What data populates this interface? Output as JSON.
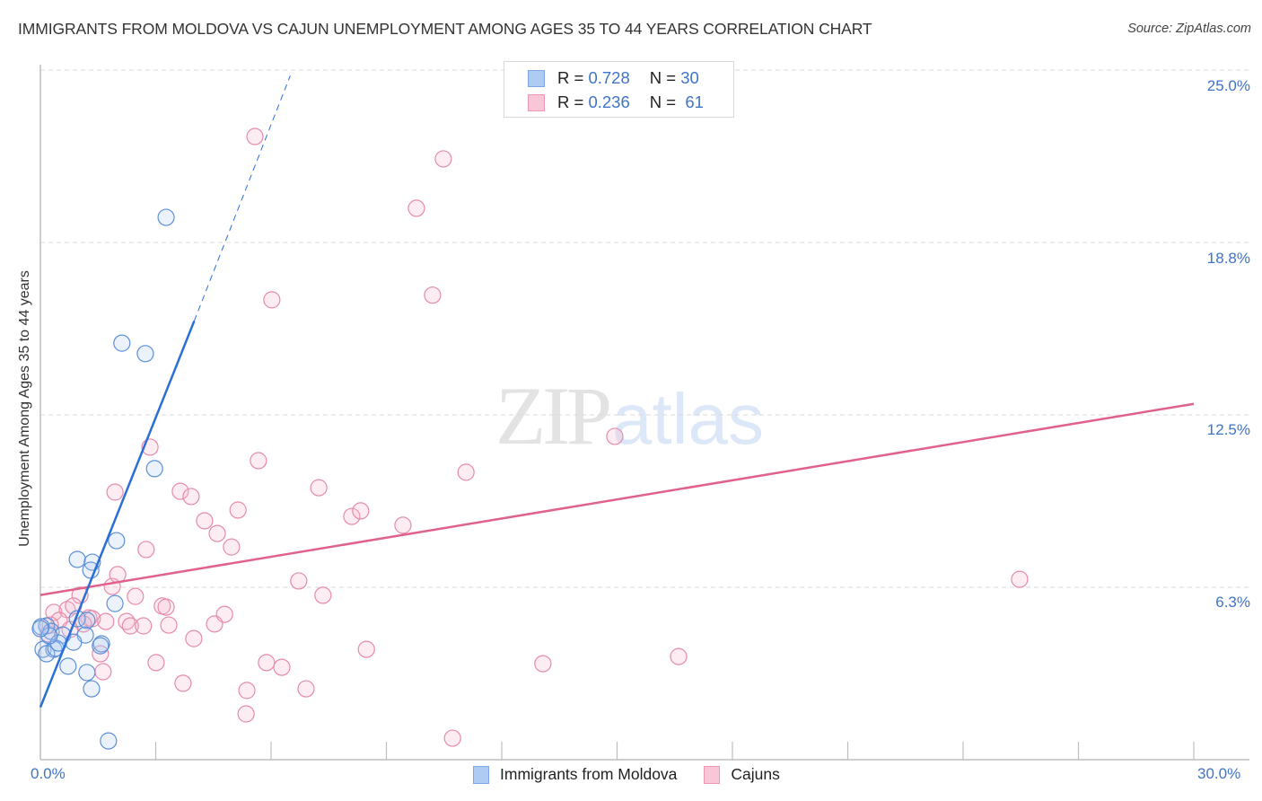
{
  "header": {
    "title": "IMMIGRANTS FROM MOLDOVA VS CAJUN UNEMPLOYMENT AMONG AGES 35 TO 44 YEARS CORRELATION CHART",
    "source": "Source: ZipAtlas.com"
  },
  "watermark": {
    "zip": "ZIP",
    "atlas": "atlas"
  },
  "legend": {
    "rows": [
      {
        "r_label": "R = ",
        "r_value": "0.728",
        "n_label": "N = ",
        "n_value": "30",
        "color": "#aecbf3"
      },
      {
        "r_label": "R = ",
        "r_value": "0.236",
        "n_label": "N = ",
        "n_value": " 61",
        "color": "#f9c6d7"
      }
    ]
  },
  "axes": {
    "ylabel": "Unemployment Among Ages 35 to 44 years",
    "yticks": [
      "25.0%",
      "18.8%",
      "12.5%",
      "6.3%"
    ],
    "xticks": [
      "0.0%",
      "30.0%"
    ]
  },
  "bottom_legend": [
    {
      "label": "Immigrants from Moldova",
      "color": "#aecbf3",
      "border": "#7fa8e2"
    },
    {
      "label": "Cajuns",
      "color": "#f9c6d7",
      "border": "#ec97b4"
    }
  ],
  "colors": {
    "blue_fill": "#aecbf340",
    "blue_stroke": "#5b8fd8",
    "blue_line": "#2a6fd6",
    "pink_fill": "#f7b6cb40",
    "pink_stroke": "#e68aa9",
    "pink_line": "#e0628c",
    "grid": "#d9d9d9",
    "axis": "#bdbdbd",
    "tick_label": "#3f74c9"
  },
  "chart_data": {
    "type": "scatter",
    "title": "IMMIGRANTS FROM MOLDOVA VS CAJUN UNEMPLOYMENT AMONG AGES 35 TO 44 YEARS CORRELATION CHART",
    "xlabel": "",
    "ylabel": "Unemployment Among Ages 35 to 44 years",
    "xlim": [
      0,
      30
    ],
    "ylim": [
      0,
      26.5
    ],
    "x_tick_labels": [
      "0.0%",
      "30.0%"
    ],
    "y_tick_labels": [
      "6.3%",
      "12.5%",
      "18.8%",
      "25.0%"
    ],
    "y_tick_values": [
      6.25,
      12.5,
      18.75,
      25.0
    ],
    "grid": true,
    "legend_position": "top-center",
    "series": [
      {
        "name": "Immigrants from Moldova",
        "R": 0.728,
        "N": 30,
        "color": "#aecbf3",
        "trend": {
          "x": [
            0,
            4.0,
            6.5
          ],
          "y": [
            1.9,
            15.9,
            24.8
          ],
          "solid_until_x": 4.0
        },
        "points": [
          [
            3.27,
            19.66
          ],
          [
            2.12,
            15.1
          ],
          [
            2.73,
            14.72
          ],
          [
            2.97,
            10.55
          ],
          [
            1.98,
            7.94
          ],
          [
            0.96,
            7.26
          ],
          [
            1.35,
            7.16
          ],
          [
            1.31,
            6.87
          ],
          [
            1.94,
            5.66
          ],
          [
            0.16,
            4.85
          ],
          [
            0.28,
            4.65
          ],
          [
            0.96,
            5.11
          ],
          [
            1.21,
            5.05
          ],
          [
            0.58,
            4.52
          ],
          [
            1.17,
            4.52
          ],
          [
            0.86,
            4.26
          ],
          [
            1.59,
            4.2
          ],
          [
            1.56,
            4.13
          ],
          [
            0.07,
            4.0
          ],
          [
            0.35,
            4.0
          ],
          [
            0.16,
            3.84
          ],
          [
            0.4,
            4.04
          ],
          [
            0.47,
            4.23
          ],
          [
            0.72,
            3.39
          ],
          [
            1.21,
            3.16
          ],
          [
            1.33,
            2.57
          ],
          [
            1.77,
            0.68
          ],
          [
            0.02,
            4.82
          ],
          [
            0.23,
            4.49
          ],
          [
            0.0,
            4.75
          ]
        ]
      },
      {
        "name": "Cajuns",
        "R": 0.236,
        "N": 61,
        "color": "#f9c6d7",
        "trend": {
          "x": [
            0,
            30
          ],
          "y": [
            5.97,
            12.9
          ]
        },
        "points": [
          [
            5.58,
            22.59
          ],
          [
            10.48,
            21.78
          ],
          [
            9.78,
            19.99
          ],
          [
            6.02,
            16.67
          ],
          [
            10.2,
            16.84
          ],
          [
            14.94,
            11.72
          ],
          [
            2.85,
            11.33
          ],
          [
            11.07,
            10.42
          ],
          [
            5.67,
            10.84
          ],
          [
            1.94,
            9.7
          ],
          [
            3.64,
            9.73
          ],
          [
            3.92,
            9.54
          ],
          [
            7.24,
            9.86
          ],
          [
            5.14,
            9.05
          ],
          [
            8.1,
            8.82
          ],
          [
            8.33,
            9.02
          ],
          [
            9.43,
            8.5
          ],
          [
            4.27,
            8.66
          ],
          [
            4.6,
            8.2
          ],
          [
            4.97,
            7.71
          ],
          [
            2.75,
            7.62
          ],
          [
            1.87,
            6.28
          ],
          [
            6.72,
            6.48
          ],
          [
            7.35,
            5.96
          ],
          [
            1.03,
            5.96
          ],
          [
            2.47,
            5.92
          ],
          [
            3.17,
            5.57
          ],
          [
            3.27,
            5.53
          ],
          [
            4.79,
            5.27
          ],
          [
            3.34,
            4.88
          ],
          [
            4.53,
            4.92
          ],
          [
            1.26,
            5.14
          ],
          [
            2.24,
            5.01
          ],
          [
            2.34,
            4.85
          ],
          [
            2.68,
            4.85
          ],
          [
            3.99,
            4.39
          ],
          [
            8.48,
            4.0
          ],
          [
            3.01,
            3.52
          ],
          [
            5.88,
            3.52
          ],
          [
            6.28,
            3.35
          ],
          [
            3.71,
            2.77
          ],
          [
            5.37,
            2.51
          ],
          [
            5.35,
            1.66
          ],
          [
            6.91,
            2.57
          ],
          [
            10.72,
            0.78
          ],
          [
            13.07,
            3.48
          ],
          [
            16.6,
            3.74
          ],
          [
            25.47,
            6.54
          ],
          [
            0.35,
            5.34
          ],
          [
            0.7,
            5.44
          ],
          [
            0.49,
            5.05
          ],
          [
            1.56,
            3.84
          ],
          [
            1.63,
            3.19
          ],
          [
            2.01,
            6.71
          ],
          [
            0.26,
            4.88
          ],
          [
            0.21,
            4.56
          ],
          [
            1.35,
            5.11
          ],
          [
            1.7,
            5.01
          ],
          [
            1.12,
            4.92
          ],
          [
            0.77,
            4.72
          ],
          [
            0.86,
            5.57
          ]
        ]
      }
    ]
  }
}
